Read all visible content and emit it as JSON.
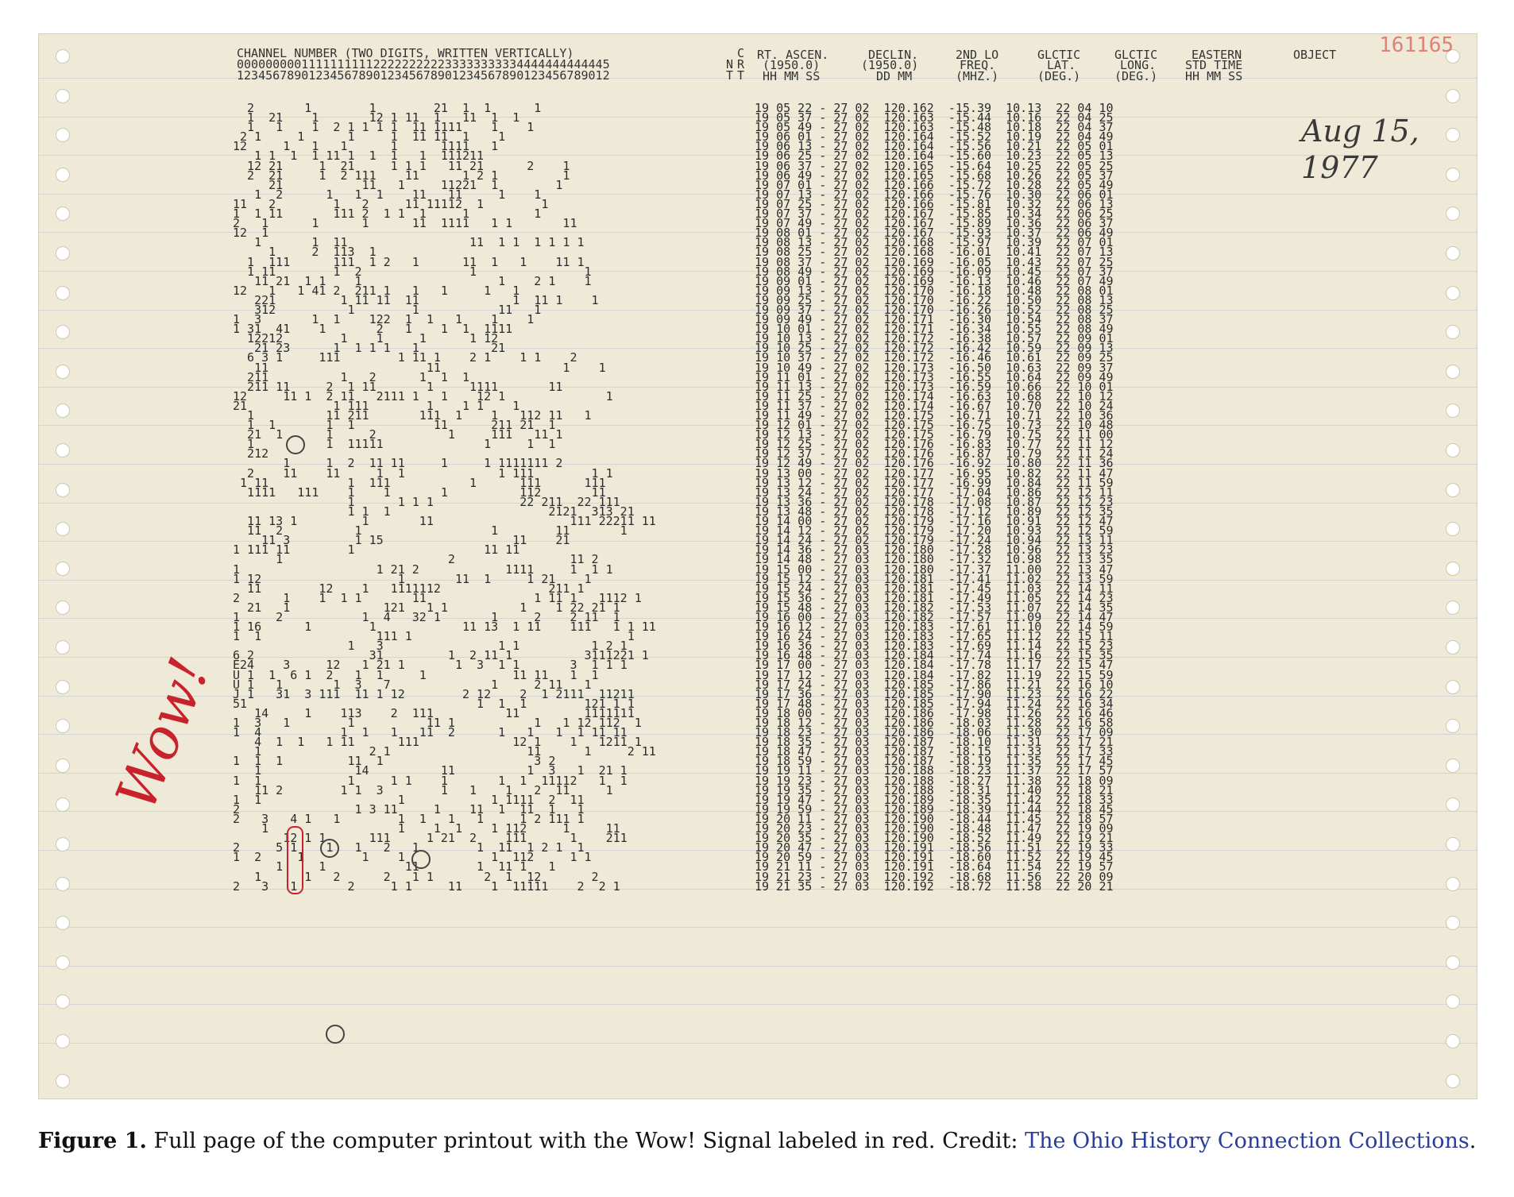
{
  "printout": {
    "corner_stamp": "161165",
    "header": {
      "channel_title": "CHANNEL NUMBER (TWO DIGITS, WRITTEN VERTICALLY)",
      "channel_tens": "0000000001111111111222222222233333333334444444444445",
      "channel_units": "1234567890123456789012345678901234567890123456789012",
      "crt_top": "C",
      "crt_mid": "R",
      "crt_bottom": "T",
      "nt_mid": "N",
      "nt_bottom": "T",
      "rt_ascen": "RT. ASCEN.",
      "rt_ascen_epoch": "(1950.0)",
      "rt_ascen_units": "HH MM SS",
      "declin": "DECLIN.",
      "declin_epoch": "(1950.0)",
      "declin_units": "DD MM",
      "freq": "2ND LO",
      "freq2": "FREQ.",
      "freq_units": "(MHZ.)",
      "glat": "GLCTIC",
      "glat2": "LAT.",
      "glat_units": "(DEG.)",
      "glong": "GLCTIC",
      "glong2": "LONG.",
      "glong_units": "(DEG.)",
      "eastern": "EASTERN",
      "eastern2": "STD TIME",
      "eastern_units": "HH MM SS",
      "object": "OBJECT"
    },
    "channel_rows": [
      "  2       1        1        21  1  1      1",
      "  1  21    1       12 1 11  1   11  1  1",
      "  1   1    1  2 1 1 1 1  11 1111    1    1",
      " 2 1     1      1     1  11 11  1    1",
      "12     1   1   1      1      1111   1",
      "   1 1  1  1 11 1  1  1   1  111211",
      "  12 21     1  21     1 1 1   11 21      2    1",
      "  2  21     1  2 111    11      1 2 1         1",
      "     21           11   1     11221  1        1",
      "   1  2      1   1  1    11   11     1    1",
      "11   2        1   2     11 11112  1        1",
      "1  1 11       111 2  1 1  1     1         1",
      "2   1      1      1      11  1111   1 1       11",
      "12  1",
      "   1       1  11                 11  1 1  1 1 1 1",
      "     1     2  113  1",
      "  1  111      111  1 2   1      11  1   1    11 1",
      "  1 11        1  2               1               1",
      "   11 21  1 1    1                   1    2 1    1",
      "12   1   1 41 2  211 1   1   1     1   1",
      "   221         1 11 11  11             1  11 1    1",
      "   312          1        1           11   1",
      "1  3       1  1    122  1  1   1    1    1",
      "1 31  41    1       2   1    1  1  1111",
      "  12212        1    1     1      1 12",
      "   21 23      1  1 1 1   1          21",
      "  6 3 1     111        1 11 1    2 1    1 1    2",
      "   11                      11                 1    1",
      "  211          1   2      1  1  1",
      "  211 11     2  1 11       1     1111       11",
      "12     11 1  2 11   2111 1   1    12 1              1",
      "21            1 111        1    1 1    1",
      "  1          11 211       111  1    1   112 11   1",
      "  1  1       1  1           11      211 21  1",
      "  21  1      1     2          1     111   11 1",
      "  1          1  11111              1     1  1",
      "  212"
    ],
    "channel_rows_b": [
      "       1     1  2  11 11     1     1 1111111 2",
      "  2    11    11     1  1             1 111        1 1",
      " 1 11           1  111           1      111      111",
      "  1111   111    1    1       1          112       11",
      "                1      1 1 1            22 211  22 111",
      "                1 1  1                      2121  313 21",
      "  11 13 1         1       11                   111 22211 11",
      "  11  2          1                  1        11       1",
      "    11 3         1 15                  11    21",
      "1 111 11        1                  11 11",
      "      1                       2                11 2",
      "1                   1 21 2            1111     1  1 1",
      "1 12                   1       11  1     1 21    1",
      "  11        12    1   1111112               211 1",
      "2      1    1  1 1       11               1 11 1   1112 1",
      "  21   1             121   1 1          1    1 22 21 1",
      "1     2           1  4   32 1       1     2    2 11  1",
      "1 16      1        1            11 13  1 11    111   1 1 11",
      "1  1                111 1                              1",
      "                1   3                1 1          1 2 1",
      "6 2                31         1  2 11 1          3111221 1",
      "E24    3     12   1 21 1       1  3  1 1       3  1 1 1",
      "U 1  1  6 1  2   1  1     1            11 11   1  1",
      "U 1   1       1  3   7              1     2 11   1",
      "J 1   31  3 111  11 1 12        2 12    2  1 2111  11211",
      "51                                1  1  1        121 1 1",
      "   14     1    113    2  111          11         1111111",
      "1  3   1        1          11 1           1   1 12 112  1",
      "1  4           1  1   1   11  2      1   1   1  1 11 11",
      "   4  1  1   1 11      111             12 1    1   1211 1",
      "   1               2 1                   11      1     2 11",
      "1  1  1         11  1                     3 2",
      "   1             14          11          1  3   1  21 1",
      "1  1            1     1 1    1       1  1  11112   1  1",
      "   11 2        1 1  3        1   1    1   2  11     1",
      "1  1                   1            1 1111  2  11",
      "2                1 3 11     1    11  1  11  1   1",
      "2   3   4 1   1        1  1   1   1     1 2 111 1",
      "    1                  1    1  1    1 112     1     11",
      "       12 1 1      111     1 21  2    111      1    211",
      "2     5 1    1   1   2   1        1  11  1 2 1  1",
      "1  2     1        1    1            1  112     1 1",
      "      1     1           11        1  11 1   1",
      "   1      1   2      2   1 1       2  1  12       2",
      "2   3   1       2     1 1     11    1  11111    2  2 1"
    ],
    "table_rows": [
      "19 05 22 - 27 02  120.162  -15.39  10.13  22 04 10",
      "19 05 37 - 27 02  120.163  -15.44  10.16  22 04 25",
      "19 05 49 - 27 02  120.163  -15.48  10.18  22 04 37",
      "19 06 01 - 27 02  120.164  -15.52  10.19  22 04 49",
      "19 06 13 - 27 02  120.164  -15.56  10.21  22 05 01",
      "19 06 25 - 27 02  120.164  -15.60  10.23  22 05 13",
      "19 06 37 - 27 02  120.165  -15.64  10.25  22 05 25",
      "19 06 49 - 27 02  120.165  -15.68  10.26  22 05 37",
      "19 07 01 - 27 02  120.166  -15.72  10.28  22 05 49",
      "19 07 13 - 27 02  120.166  -15.76  10.30  22 06 01",
      "19 07 25 - 27 02  120.166  -15.81  10.32  22 06 13",
      "19 07 37 - 27 02  120.167  -15.85  10.34  22 06 25",
      "19 07 49 - 27 02  120.167  -15.89  10.36  22 06 37",
      "19 08 01 - 27 02  120.167  -15.93  10.37  22 06 49",
      "19 08 13 - 27 02  120.168  -15.97  10.39  22 07 01",
      "19 08 25 - 27 02  120.168  -16.01  10.41  22 07 13",
      "19 08 37 - 27 02  120.169  -16.05  10.43  22 07 25",
      "19 08 49 - 27 02  120.169  -16.09  10.45  22 07 37",
      "19 09 01 - 27 02  120.169  -16.13  10.46  22 07 49",
      "19 09 13 - 27 02  120.170  -16.18  10.48  22 08 01",
      "19 09 25 - 27 02  120.170  -16.22  10.50  22 08 13",
      "19 09 37 - 27 02  120.170  -16.26  10.52  22 08 25",
      "19 09 49 - 27 02  120.171  -16.30  10.54  22 08 37",
      "19 10 01 - 27 02  120.171  -16.34  10.55  22 08 49",
      "19 10 13 - 27 02  120.172  -16.38  10.57  22 09 01",
      "19 10 25 - 27 02  120.172  -16.42  10.59  22 09 13",
      "19 10 37 - 27 02  120.172  -16.46  10.61  22 09 25",
      "19 10 49 - 27 02  120.173  -16.50  10.63  22 09 37",
      "19 11 01 - 27 02  120.173  -16.55  10.64  22 09 49",
      "19 11 13 - 27 02  120.173  -16.59  10.66  22 10 01",
      "19 11 25 - 27 02  120.174  -16.63  10.68  22 10 12",
      "19 11 37 - 27 02  120.174  -16.67  10.70  22 10 24",
      "19 11 49 - 27 02  120.175  -16.71  10.71  22 10 36",
      "19 12 01 - 27 02  120.175  -16.75  10.73  22 10 48",
      "19 12 13 - 27 02  120.175  -16.79  10.75  22 11 00",
      "19 12 25 - 27 02  120.176  -16.83  10.77  22 11 12",
      "19 12 37 - 27 02  120.176  -16.87  10.79  22 11 24",
      "19 12 49 - 27 02  120.176  -16.92  10.80  22 11 36",
      "19 13 00 - 27 02  120.177  -16.95  10.82  22 11 47",
      "19 13 12 - 27 02  120.177  -16.99  10.84  22 11 59",
      "19 13 24 - 27 02  120.177  -17.04  10.86  22 12 11",
      "19 13 36 - 27 02  120.178  -17.08  10.87  22 12 23",
      "19 13 48 - 27 02  120.178  -17.12  10.89  22 12 35",
      "19 14 00 - 27 02  120.179  -17.16  10.91  22 12 47",
      "19 14 12 - 27 02  120.179  -17.20  10.93  22 12 59",
      "19 14 24 - 27 02  120.179  -17.24  10.94  22 13 11",
      "19 14 36 - 27 03  120.180  -17.28  10.96  22 13 23",
      "19 14 48 - 27 03  120.180  -17.32  10.98  22 13 35",
      "19 15 00 - 27 03  120.180  -17.37  11.00  22 13 47",
      "19 15 12 - 27 03  120.181  -17.41  11.02  22 13 59",
      "19 15 24 - 27 03  120.181  -17.45  11.03  22 14 11",
      "19 15 36 - 27 03  120.181  -17.49  11.05  22 14 23",
      "19 15 48 - 27 03  120.182  -17.53  11.07  22 14 35",
      "19 16 00 - 27 03  120.182  -17.57  11.09  22 14 47",
      "19 16 12 - 27 03  120.183  -17.61  11.10  22 14 59",
      "19 16 24 - 27 03  120.183  -17.65  11.12  22 15 11",
      "19 16 36 - 27 03  120.183  -17.69  11.14  22 15 23",
      "19 16 48 - 27 03  120.184  -17.74  11.16  22 15 35",
      "19 17 00 - 27 03  120.184  -17.78  11.17  22 15 47",
      "19 17 12 - 27 03  120.184  -17.82  11.19  22 15 59",
      "19 17 24 - 27 03  120.185  -17.86  11.21  22 16 10",
      "19 17 36 - 27 03  120.185  -17.90  11.23  22 16 22",
      "19 17 48 - 27 03  120.185  -17.94  11.24  22 16 34",
      "19 18 00 - 27 03  120.186  -17.98  11.26  22 16 46",
      "19 18 12 - 27 03  120.186  -18.03  11.28  22 16 58",
      "19 18 23 - 27 03  120.186  -18.06  11.30  22 17 09",
      "19 18 35 - 27 03  120.187  -18.10  11.31  22 17 21",
      "19 18 47 - 27 03  120.187  -18.15  11.33  22 17 33",
      "19 18 59 - 27 03  120.187  -18.19  11.35  22 17 45",
      "19 19 11 - 27 03  120.188  -18.23  11.37  22 17 57",
      "19 19 23 - 27 03  120.188  -18.27  11.38  22 18 09",
      "19 19 35 - 27 03  120.188  -18.31  11.40  22 18 21",
      "19 19 47 - 27 03  120.189  -18.35  11.42  22 18 33",
      "19 19 59 - 27 03  120.189  -18.39  11.44  22 18 45",
      "19 20 11 - 27 03  120.190  -18.44  11.45  22 18 57",
      "19 20 23 - 27 03  120.190  -18.48  11.47  22 19 09",
      "19 20 35 - 27 03  120.190  -18.52  11.49  22 19 21",
      "19 20 47 - 27 03  120.191  -18.56  11.51  22 19 33",
      "19 20 59 - 27 03  120.191  -18.60  11.52  22 19 45",
      "19 21 11 - 27 03  120.191  -18.64  11.54  22 19 57",
      "19 21 23 - 27 03  120.192  -18.68  11.56  22 20 09",
      "19 21 35 - 27 03  120.192  -18.72  11.58  22 20 21"
    ],
    "annotation_wow": "Wow!",
    "annotation_date_line1": "Aug 15,",
    "annotation_date_line2": "1977",
    "colors": {
      "paper": "#efe9d7",
      "annotation_red": "#c8232c",
      "link": "#2a3d99"
    }
  },
  "caption": {
    "label": "Figure 1.",
    "text": " Full page of the computer printout with the Wow! Signal labeled in red. Credit: ",
    "credit_link": "The Ohio History Connection Collections",
    "end": "."
  }
}
